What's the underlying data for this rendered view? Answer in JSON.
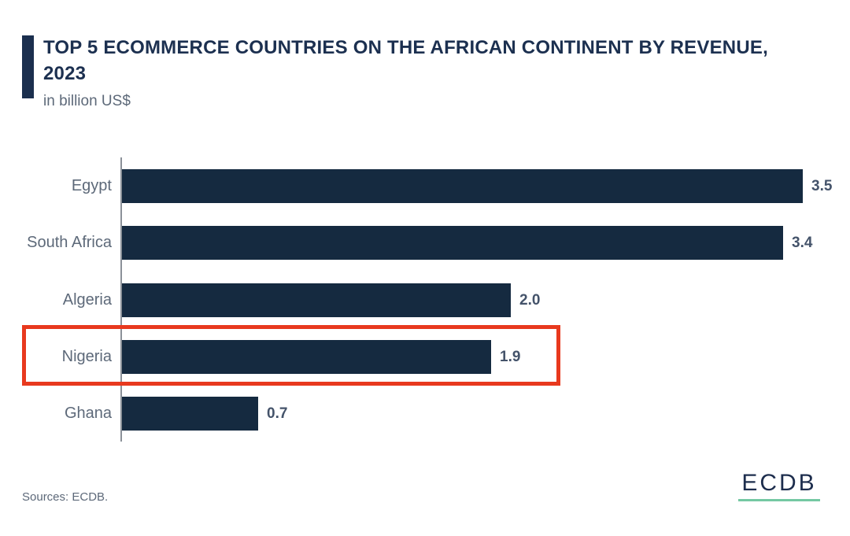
{
  "header": {
    "title": "TOP 5 ECOMMERCE COUNTRIES ON THE AFRICAN CONTINENT BY REVENUE, 2023",
    "subtitle": "in billion US$"
  },
  "chart_data": {
    "type": "bar",
    "orientation": "horizontal",
    "title": "TOP 5 ECOMMERCE COUNTRIES ON THE AFRICAN CONTINENT BY REVENUE, 2023",
    "unit_label": "in billion US$",
    "categories": [
      "Egypt",
      "South Africa",
      "Algeria",
      "Nigeria",
      "Ghana"
    ],
    "values": [
      3.5,
      3.4,
      2.0,
      1.9,
      0.7
    ],
    "value_labels": [
      "3.5",
      "3.4",
      "2.0",
      "1.9",
      "0.7"
    ],
    "xlim": [
      0,
      3.7
    ],
    "grid": false,
    "legend": false,
    "bar_color": "#152a40",
    "highlight": {
      "category": "Nigeria",
      "box_color": "#e8391e"
    }
  },
  "footer": {
    "source": "Sources: ECDB.",
    "logo_text": "ECDB",
    "logo_underline_color": "#74c8a3"
  },
  "colors": {
    "title_text": "#1c3050",
    "category_label_text": "#5d6979",
    "value_label_text": "#44536a",
    "axis_line": "#8b9199",
    "background": "#ffffff"
  }
}
